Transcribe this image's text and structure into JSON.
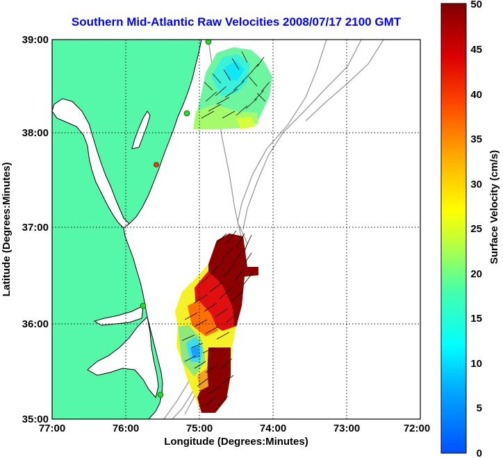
{
  "title": "Southern Mid-Atlantic Raw Velocities 2008/07/17 2100 GMT",
  "map": {
    "xlabel": "Longitude (Degrees:Minutes)",
    "ylabel": "Latitude (Degrees:Minutes)",
    "x_ticks": [
      "77:00",
      "76:00",
      "75:00",
      "74:00",
      "73:00",
      "72:00"
    ],
    "y_ticks": [
      "39:00",
      "38:00",
      "37:00",
      "36:00",
      "35:00"
    ],
    "land_color": "#55f7a8",
    "water_color": "#ffffff",
    "bathymetry_color": "#999999",
    "station_color": "#22dd22",
    "station_highlight_color": "#ff3300",
    "grid": "dotted"
  },
  "colorbar": {
    "label": "Surface Velocity (cm/s)",
    "ticks": [
      "50",
      "45",
      "40",
      "35",
      "30",
      "25",
      "20",
      "15",
      "10",
      "5",
      "0"
    ],
    "min": 0,
    "max": 50,
    "colormap": "jet"
  }
}
